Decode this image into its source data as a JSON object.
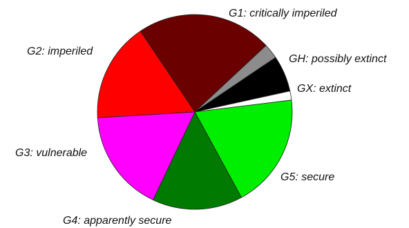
{
  "chart_data": {
    "type": "pie",
    "title": "",
    "slices": [
      {
        "label": "G1: critically imperiled",
        "value": 22.5,
        "color": "#6b0000"
      },
      {
        "label": "GH: possibly extinct",
        "value": 2.5,
        "color": "#8c8c8c"
      },
      {
        "label": "GX: extinct",
        "value": 6.0,
        "color": "#000000"
      },
      {
        "label": "",
        "value": 1.5,
        "color": "#ffffff"
      },
      {
        "label": "G5: secure",
        "value": 19.0,
        "color": "#00ee00"
      },
      {
        "label": "G4: apparently secure",
        "value": 15.0,
        "color": "#007a00"
      },
      {
        "label": "G3: vulnerable",
        "value": 17.0,
        "color": "#ff00ff"
      },
      {
        "label": "G2: imperiled",
        "value": 16.5,
        "color": "#ff0000"
      }
    ],
    "start_angle_deg": -124,
    "direction": "clockwise",
    "legend": "none"
  }
}
